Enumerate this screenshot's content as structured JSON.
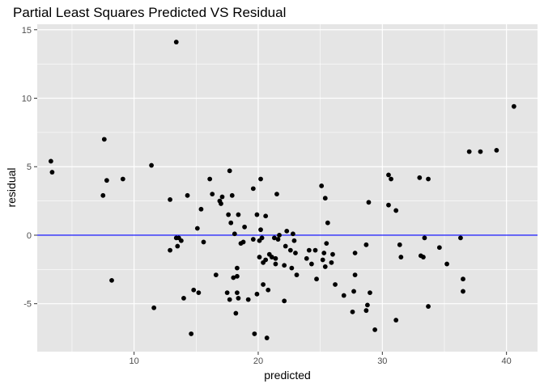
{
  "chart_data": {
    "type": "scatter",
    "title": "Partial Least Squares Predicted VS Residual",
    "xlabel": "predicted",
    "ylabel": "residual",
    "xlim": [
      2.2,
      42.5
    ],
    "ylim": [
      -8.5,
      15.4
    ],
    "x_ticks": [
      10,
      20,
      30,
      40
    ],
    "y_ticks": [
      -5,
      0,
      5,
      10,
      15
    ],
    "x_minor": [
      5,
      15,
      25,
      35
    ],
    "y_minor": [
      -2.5,
      2.5,
      7.5,
      12.5
    ],
    "grid": true,
    "panel_color": "#e5e5e5",
    "grid_color": "#ffffff",
    "point_color": "#000000",
    "reference_line": {
      "y": 0,
      "color": "#0000ff"
    },
    "points": [
      {
        "x": 3.3,
        "y": 5.4
      },
      {
        "x": 3.4,
        "y": 4.6
      },
      {
        "x": 7.6,
        "y": 7.0
      },
      {
        "x": 7.5,
        "y": 2.9
      },
      {
        "x": 7.8,
        "y": 4.0
      },
      {
        "x": 8.2,
        "y": -3.3
      },
      {
        "x": 9.1,
        "y": 4.1
      },
      {
        "x": 11.4,
        "y": 5.1
      },
      {
        "x": 11.6,
        "y": -5.3
      },
      {
        "x": 12.9,
        "y": 2.6
      },
      {
        "x": 12.9,
        "y": -1.1
      },
      {
        "x": 13.4,
        "y": 14.1
      },
      {
        "x": 13.4,
        "y": -0.2
      },
      {
        "x": 13.5,
        "y": -0.8
      },
      {
        "x": 13.6,
        "y": -0.2
      },
      {
        "x": 13.8,
        "y": -0.4
      },
      {
        "x": 14.0,
        "y": -4.6
      },
      {
        "x": 14.3,
        "y": 2.9
      },
      {
        "x": 14.6,
        "y": -7.2
      },
      {
        "x": 14.8,
        "y": -4.0
      },
      {
        "x": 15.1,
        "y": 0.5
      },
      {
        "x": 15.2,
        "y": -4.2
      },
      {
        "x": 15.4,
        "y": 1.9
      },
      {
        "x": 15.6,
        "y": -0.5
      },
      {
        "x": 16.1,
        "y": 4.1
      },
      {
        "x": 16.3,
        "y": 3.0
      },
      {
        "x": 16.6,
        "y": -2.9
      },
      {
        "x": 16.9,
        "y": 2.5
      },
      {
        "x": 17.0,
        "y": 2.3
      },
      {
        "x": 17.1,
        "y": 2.8
      },
      {
        "x": 17.5,
        "y": -4.2
      },
      {
        "x": 17.6,
        "y": 1.5
      },
      {
        "x": 17.7,
        "y": 4.7
      },
      {
        "x": 17.7,
        "y": -4.7
      },
      {
        "x": 17.9,
        "y": 2.9
      },
      {
        "x": 17.8,
        "y": 0.9
      },
      {
        "x": 18.0,
        "y": -3.1
      },
      {
        "x": 18.1,
        "y": 0.1
      },
      {
        "x": 18.2,
        "y": -5.7
      },
      {
        "x": 18.3,
        "y": -2.4
      },
      {
        "x": 18.3,
        "y": -3.0
      },
      {
        "x": 18.3,
        "y": -4.2
      },
      {
        "x": 18.4,
        "y": -4.6
      },
      {
        "x": 18.4,
        "y": 1.5
      },
      {
        "x": 18.6,
        "y": -0.6
      },
      {
        "x": 18.8,
        "y": -0.5
      },
      {
        "x": 18.9,
        "y": 0.6
      },
      {
        "x": 19.2,
        "y": -4.7
      },
      {
        "x": 19.6,
        "y": 3.4
      },
      {
        "x": 19.6,
        "y": -0.3
      },
      {
        "x": 19.7,
        "y": -7.2
      },
      {
        "x": 19.9,
        "y": -4.3
      },
      {
        "x": 19.9,
        "y": 1.5
      },
      {
        "x": 20.1,
        "y": -0.4
      },
      {
        "x": 20.1,
        "y": -1.6
      },
      {
        "x": 20.2,
        "y": 0.4
      },
      {
        "x": 20.2,
        "y": 4.1
      },
      {
        "x": 20.3,
        "y": -0.2
      },
      {
        "x": 20.4,
        "y": -2.0
      },
      {
        "x": 20.4,
        "y": -3.6
      },
      {
        "x": 20.6,
        "y": 1.4
      },
      {
        "x": 20.6,
        "y": -1.8
      },
      {
        "x": 20.7,
        "y": -7.5
      },
      {
        "x": 20.8,
        "y": -4.0
      },
      {
        "x": 20.9,
        "y": -1.4
      },
      {
        "x": 21.1,
        "y": -1.6
      },
      {
        "x": 21.3,
        "y": -0.2
      },
      {
        "x": 21.4,
        "y": -1.7
      },
      {
        "x": 21.4,
        "y": -2.1
      },
      {
        "x": 21.5,
        "y": 3.0
      },
      {
        "x": 21.6,
        "y": -0.3
      },
      {
        "x": 21.7,
        "y": -0.0
      },
      {
        "x": 22.1,
        "y": -4.8
      },
      {
        "x": 22.1,
        "y": -2.2
      },
      {
        "x": 22.2,
        "y": -0.8
      },
      {
        "x": 22.3,
        "y": 0.3
      },
      {
        "x": 22.6,
        "y": -1.1
      },
      {
        "x": 22.7,
        "y": -2.4
      },
      {
        "x": 22.8,
        "y": 0.1
      },
      {
        "x": 22.9,
        "y": -0.4
      },
      {
        "x": 23.0,
        "y": -1.3
      },
      {
        "x": 23.1,
        "y": -2.9
      },
      {
        "x": 23.9,
        "y": -1.7
      },
      {
        "x": 24.1,
        "y": -1.1
      },
      {
        "x": 24.3,
        "y": -2.1
      },
      {
        "x": 24.6,
        "y": -1.1
      },
      {
        "x": 24.7,
        "y": -3.2
      },
      {
        "x": 25.1,
        "y": 3.6
      },
      {
        "x": 25.2,
        "y": -1.8
      },
      {
        "x": 25.3,
        "y": -1.3
      },
      {
        "x": 25.4,
        "y": -2.3
      },
      {
        "x": 25.4,
        "y": 2.7
      },
      {
        "x": 25.5,
        "y": -0.6
      },
      {
        "x": 25.6,
        "y": 0.9
      },
      {
        "x": 25.9,
        "y": -2.0
      },
      {
        "x": 26.0,
        "y": -1.4
      },
      {
        "x": 26.2,
        "y": -3.6
      },
      {
        "x": 26.9,
        "y": -4.4
      },
      {
        "x": 27.6,
        "y": -5.6
      },
      {
        "x": 27.7,
        "y": -4.1
      },
      {
        "x": 27.8,
        "y": -1.3
      },
      {
        "x": 27.8,
        "y": -2.9
      },
      {
        "x": 28.7,
        "y": -0.7
      },
      {
        "x": 28.7,
        "y": -5.5
      },
      {
        "x": 28.8,
        "y": -5.1
      },
      {
        "x": 28.9,
        "y": 2.4
      },
      {
        "x": 29.0,
        "y": -4.2
      },
      {
        "x": 29.4,
        "y": -6.9
      },
      {
        "x": 30.5,
        "y": 4.4
      },
      {
        "x": 30.5,
        "y": 2.2
      },
      {
        "x": 30.7,
        "y": 4.1
      },
      {
        "x": 31.1,
        "y": 1.8
      },
      {
        "x": 31.1,
        "y": -6.2
      },
      {
        "x": 31.4,
        "y": -0.7
      },
      {
        "x": 31.5,
        "y": -1.6
      },
      {
        "x": 33.0,
        "y": 4.2
      },
      {
        "x": 33.1,
        "y": -1.5
      },
      {
        "x": 33.3,
        "y": -1.6
      },
      {
        "x": 33.4,
        "y": -0.2
      },
      {
        "x": 33.7,
        "y": 4.1
      },
      {
        "x": 33.7,
        "y": -5.2
      },
      {
        "x": 34.6,
        "y": -0.9
      },
      {
        "x": 35.2,
        "y": -2.1
      },
      {
        "x": 36.3,
        "y": -0.2
      },
      {
        "x": 36.5,
        "y": -3.2
      },
      {
        "x": 36.5,
        "y": -4.1
      },
      {
        "x": 37.0,
        "y": 6.1
      },
      {
        "x": 37.9,
        "y": 6.1
      },
      {
        "x": 39.2,
        "y": 6.2
      },
      {
        "x": 40.6,
        "y": 9.4
      }
    ]
  }
}
